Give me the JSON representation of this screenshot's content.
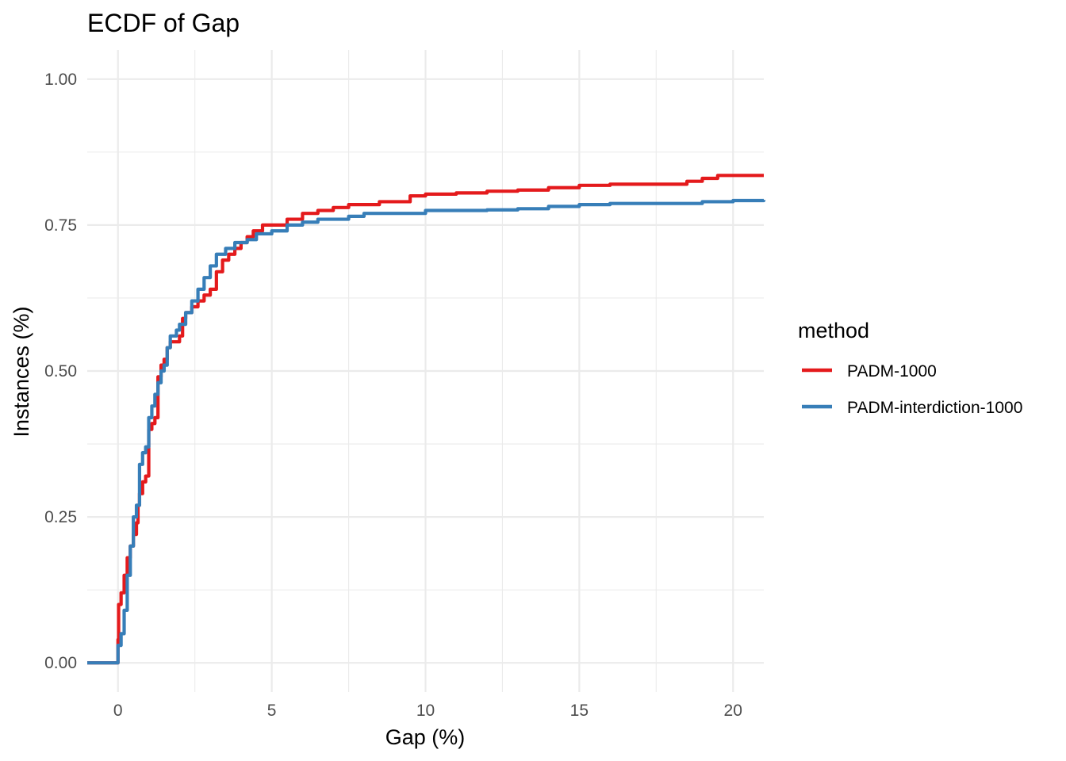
{
  "chart_data": {
    "type": "line",
    "title": "ECDF of Gap",
    "xlabel": "Gap (%)",
    "ylabel": "Instances (%)",
    "xlim": [
      -1,
      21
    ],
    "ylim": [
      -0.05,
      1.05
    ],
    "x_ticks": [
      0,
      5,
      10,
      15,
      20
    ],
    "x_tick_labels": [
      "0",
      "5",
      "10",
      "15",
      "20"
    ],
    "y_ticks": [
      0,
      0.25,
      0.5,
      0.75,
      1
    ],
    "y_tick_labels": [
      "0.00",
      "0.25",
      "0.50",
      "0.75",
      "1.00"
    ],
    "grid": true,
    "legend_title": "method",
    "legend_position": "right",
    "series": [
      {
        "name": "PADM-1000",
        "color": "#E41A1C",
        "points": [
          [
            -1,
            0
          ],
          [
            0,
            0
          ],
          [
            0,
            0.04
          ],
          [
            0.02,
            0.1
          ],
          [
            0.1,
            0.12
          ],
          [
            0.2,
            0.15
          ],
          [
            0.3,
            0.18
          ],
          [
            0.4,
            0.2
          ],
          [
            0.5,
            0.22
          ],
          [
            0.6,
            0.24
          ],
          [
            0.65,
            0.27
          ],
          [
            0.7,
            0.29
          ],
          [
            0.8,
            0.31
          ],
          [
            0.9,
            0.32
          ],
          [
            1,
            0.33
          ],
          [
            1,
            0.4
          ],
          [
            1.1,
            0.41
          ],
          [
            1.2,
            0.42
          ],
          [
            1.3,
            0.43
          ],
          [
            1.3,
            0.49
          ],
          [
            1.4,
            0.51
          ],
          [
            1.5,
            0.52
          ],
          [
            1.6,
            0.54
          ],
          [
            1.7,
            0.55
          ],
          [
            1.8,
            0.55
          ],
          [
            2.0,
            0.56
          ],
          [
            2.1,
            0.59
          ],
          [
            2.2,
            0.6
          ],
          [
            2.4,
            0.61
          ],
          [
            2.6,
            0.62
          ],
          [
            2.8,
            0.63
          ],
          [
            3.0,
            0.64
          ],
          [
            3.2,
            0.67
          ],
          [
            3.4,
            0.69
          ],
          [
            3.6,
            0.7
          ],
          [
            3.8,
            0.71
          ],
          [
            4.0,
            0.72
          ],
          [
            4.2,
            0.73
          ],
          [
            4.4,
            0.74
          ],
          [
            4.7,
            0.75
          ],
          [
            5.0,
            0.75
          ],
          [
            5.5,
            0.76
          ],
          [
            6.0,
            0.77
          ],
          [
            6.5,
            0.775
          ],
          [
            7.0,
            0.78
          ],
          [
            7.5,
            0.785
          ],
          [
            8.5,
            0.79
          ],
          [
            9.5,
            0.8
          ],
          [
            10,
            0.803
          ],
          [
            11,
            0.805
          ],
          [
            12,
            0.808
          ],
          [
            13,
            0.81
          ],
          [
            14,
            0.814
          ],
          [
            15,
            0.818
          ],
          [
            16,
            0.82
          ],
          [
            17,
            0.82
          ],
          [
            18,
            0.82
          ],
          [
            18.5,
            0.825
          ],
          [
            19,
            0.83
          ],
          [
            19.5,
            0.835
          ],
          [
            21,
            0.835
          ]
        ]
      },
      {
        "name": "PADM-interdiction-1000",
        "color": "#377EB8",
        "points": [
          [
            -1,
            0
          ],
          [
            0,
            0
          ],
          [
            0,
            0.03
          ],
          [
            0.1,
            0.05
          ],
          [
            0.2,
            0.09
          ],
          [
            0.3,
            0.15
          ],
          [
            0.4,
            0.2
          ],
          [
            0.5,
            0.25
          ],
          [
            0.6,
            0.27
          ],
          [
            0.7,
            0.29
          ],
          [
            0.7,
            0.34
          ],
          [
            0.8,
            0.36
          ],
          [
            0.9,
            0.37
          ],
          [
            1.0,
            0.38
          ],
          [
            1.0,
            0.42
          ],
          [
            1.1,
            0.44
          ],
          [
            1.2,
            0.46
          ],
          [
            1.3,
            0.48
          ],
          [
            1.4,
            0.5
          ],
          [
            1.5,
            0.51
          ],
          [
            1.6,
            0.54
          ],
          [
            1.7,
            0.56
          ],
          [
            1.9,
            0.57
          ],
          [
            2.0,
            0.58
          ],
          [
            2.2,
            0.6
          ],
          [
            2.4,
            0.62
          ],
          [
            2.6,
            0.64
          ],
          [
            2.8,
            0.66
          ],
          [
            3.0,
            0.68
          ],
          [
            3.2,
            0.7
          ],
          [
            3.5,
            0.71
          ],
          [
            3.8,
            0.72
          ],
          [
            4.2,
            0.725
          ],
          [
            4.5,
            0.735
          ],
          [
            5.0,
            0.74
          ],
          [
            5.5,
            0.75
          ],
          [
            6.0,
            0.755
          ],
          [
            6.5,
            0.76
          ],
          [
            7.5,
            0.765
          ],
          [
            8.0,
            0.77
          ],
          [
            9.0,
            0.77
          ],
          [
            10,
            0.775
          ],
          [
            11,
            0.775
          ],
          [
            12,
            0.776
          ],
          [
            13,
            0.778
          ],
          [
            14,
            0.782
          ],
          [
            15,
            0.785
          ],
          [
            16,
            0.787
          ],
          [
            17,
            0.787
          ],
          [
            18,
            0.787
          ],
          [
            19,
            0.79
          ],
          [
            20,
            0.792
          ],
          [
            21,
            0.793
          ]
        ]
      }
    ]
  }
}
